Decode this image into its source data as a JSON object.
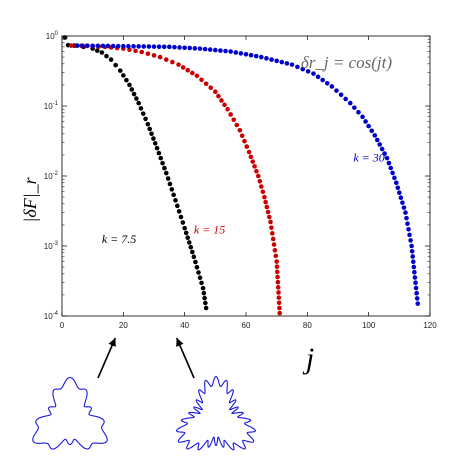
{
  "chart_data": {
    "type": "scatter",
    "title": "",
    "equation": "δr_j = cos(jt)",
    "xlabel": "j",
    "ylabel": "|δF|_r",
    "xlim": [
      0,
      120
    ],
    "ylim": [
      0.0001,
      1
    ],
    "yscale": "log",
    "x_ticks": [
      "0",
      "20",
      "40",
      "60",
      "80",
      "100",
      "120"
    ],
    "y_ticks": [
      {
        "base": "10",
        "exp": "0"
      },
      {
        "base": "10",
        "exp": "-1"
      },
      {
        "base": "10",
        "exp": "-2"
      },
      {
        "base": "10",
        "exp": "-3"
      },
      {
        "base": "10",
        "exp": "-4"
      }
    ],
    "grid": false,
    "series": [
      {
        "name": "k = 7.5",
        "color": "#000000",
        "points": [
          [
            1,
            0.95
          ],
          [
            2,
            0.74
          ],
          [
            4,
            0.73
          ],
          [
            7,
            0.7
          ],
          [
            10,
            0.66
          ],
          [
            13,
            0.58
          ],
          [
            16,
            0.46
          ],
          [
            19,
            0.32
          ],
          [
            22,
            0.2
          ],
          [
            25,
            0.11
          ],
          [
            28,
            0.055
          ],
          [
            31,
            0.025
          ],
          [
            34,
            0.011
          ],
          [
            37,
            0.0045
          ],
          [
            40,
            0.0018
          ],
          [
            43,
            0.0007
          ],
          [
            46,
            0.00025
          ],
          [
            47,
            0.00013
          ]
        ]
      },
      {
        "name": "k = 15",
        "color": "#cc0000",
        "points": [
          [
            3,
            0.73
          ],
          [
            8,
            0.72
          ],
          [
            14,
            0.7
          ],
          [
            20,
            0.66
          ],
          [
            26,
            0.59
          ],
          [
            32,
            0.5
          ],
          [
            38,
            0.39
          ],
          [
            44,
            0.27
          ],
          [
            50,
            0.16
          ],
          [
            54,
            0.09
          ],
          [
            58,
            0.045
          ],
          [
            61,
            0.022
          ],
          [
            64,
            0.01
          ],
          [
            66,
            0.005
          ],
          [
            68,
            0.0022
          ],
          [
            70,
            0.0006
          ],
          [
            71,
            0.00011
          ]
        ]
      },
      {
        "name": "k = 30",
        "color": "#0000cc",
        "points": [
          [
            5,
            0.73
          ],
          [
            15,
            0.72
          ],
          [
            25,
            0.71
          ],
          [
            35,
            0.7
          ],
          [
            45,
            0.66
          ],
          [
            55,
            0.6
          ],
          [
            65,
            0.5
          ],
          [
            75,
            0.39
          ],
          [
            82,
            0.29
          ],
          [
            88,
            0.19
          ],
          [
            94,
            0.11
          ],
          [
            98,
            0.07
          ],
          [
            102,
            0.038
          ],
          [
            106,
            0.018
          ],
          [
            109,
            0.008
          ],
          [
            112,
            0.003
          ],
          [
            114,
            0.001
          ],
          [
            116,
            0.00015
          ]
        ]
      }
    ],
    "annotations": [
      {
        "text": "k = 30",
        "color": "#0000cc",
        "x": 95,
        "y": 0.016
      },
      {
        "text": "k = 15",
        "color": "#cc0000",
        "x": 43,
        "y": 0.0015
      },
      {
        "text": "k = 7.5",
        "color": "#000000",
        "x": 13,
        "y": 0.0011
      }
    ],
    "insets": [
      {
        "name": "k = 7.5 contour",
        "lobes": 3,
        "ripples": 12,
        "arrow_to_x": 20
      },
      {
        "name": "k = 15 contour",
        "lobes": 3,
        "ripples": 24,
        "arrow_to_x": 40
      }
    ]
  }
}
